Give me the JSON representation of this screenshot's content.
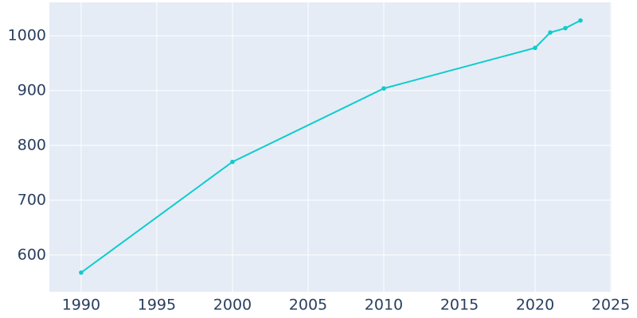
{
  "chart_data": {
    "type": "line",
    "x": [
      1990,
      2000,
      2010,
      2020,
      2021,
      2022,
      2023
    ],
    "values": [
      568,
      770,
      904,
      978,
      1006,
      1014,
      1028
    ],
    "color": "#0fcccc",
    "xlim": [
      1987.9,
      2025.05
    ],
    "xticks": [
      1990,
      1995,
      2000,
      2005,
      2010,
      2015,
      2020,
      2025
    ],
    "ylim": [
      533,
      1061
    ],
    "yticks": [
      600,
      700,
      800,
      900,
      1000
    ],
    "grid": true
  }
}
